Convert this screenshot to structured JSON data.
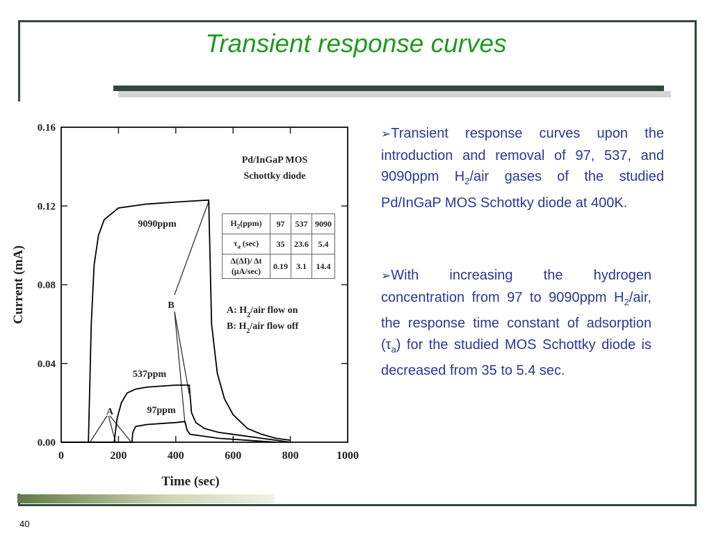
{
  "title": "Transient response curves",
  "bullets": [
    [
      "Transient response curves upon the introduction and removal of 97, 537, and 9090ppm H",
      "2",
      "/air gases of the studied Pd/InGaP MOS Schottky diode at 400K."
    ],
    [
      "With increasing the hydrogen concentration from 97 to 9090ppm H",
      "2",
      "/air, the response time constant of adsorption (τ",
      "a",
      ") for the studied MOS Schottky diode is decreased from 35 to 5.4 sec."
    ]
  ],
  "page_number": 40,
  "chart_data": {
    "type": "line",
    "xlabel": "Time (sec)",
    "ylabel": "Current (mA)",
    "xlim": [
      0,
      1000
    ],
    "xticks": [
      0,
      200,
      400,
      600,
      800,
      1000
    ],
    "ylim": [
      0,
      0.16
    ],
    "yticks": [
      {
        "value": 0,
        "label": "0.00"
      },
      0.04,
      0.08,
      0.12,
      0.16
    ],
    "device_label": [
      "Pd/InGaP MOS",
      "Schottky diode"
    ],
    "notes": [
      [
        "A: H",
        "2",
        "/air flow on"
      ],
      [
        "B: H",
        "2",
        "/air flow off"
      ]
    ],
    "markers": [
      "A",
      "B"
    ],
    "table": {
      "rows": [
        [
          [
            "H",
            "2",
            "(ppm)"
          ],
          97,
          537,
          9090
        ],
        [
          [
            "τ",
            "a",
            " (sec)"
          ],
          35,
          23.6,
          5.4
        ],
        [
          [
            "Δ(ΔI)/ Δt (μA/sec)"
          ],
          0.19,
          3.1,
          14.4
        ]
      ]
    },
    "series": [
      {
        "name": "9090ppm",
        "color": "#000000",
        "x": [
          0,
          95,
          105,
          115,
          130,
          150,
          200,
          300,
          400,
          515,
          525,
          545,
          570,
          600,
          650,
          700,
          750,
          800
        ],
        "values": [
          0,
          0,
          0.06,
          0.09,
          0.105,
          0.113,
          0.119,
          0.121,
          0.122,
          0.123,
          0.06,
          0.035,
          0.022,
          0.014,
          0.007,
          0.004,
          0.002,
          0.001
        ]
      },
      {
        "name": "537ppm",
        "color": "#000000",
        "x": [
          0,
          185,
          195,
          210,
          230,
          260,
          300,
          400,
          447,
          455,
          470,
          500,
          550,
          600,
          700,
          800
        ],
        "values": [
          0,
          0,
          0.012,
          0.02,
          0.025,
          0.027,
          0.028,
          0.029,
          0.029,
          0.015,
          0.01,
          0.007,
          0.005,
          0.004,
          0.002,
          0
        ]
      },
      {
        "name": "97ppm",
        "color": "#000000",
        "x": [
          0,
          247,
          250,
          260,
          300,
          400,
          432,
          440,
          450,
          500,
          550,
          650,
          750
        ],
        "values": [
          0,
          0,
          0.005,
          0.008,
          0.009,
          0.01,
          0.0105,
          0.006,
          0.004,
          0.003,
          0.002,
          0.001,
          0
        ]
      }
    ]
  }
}
